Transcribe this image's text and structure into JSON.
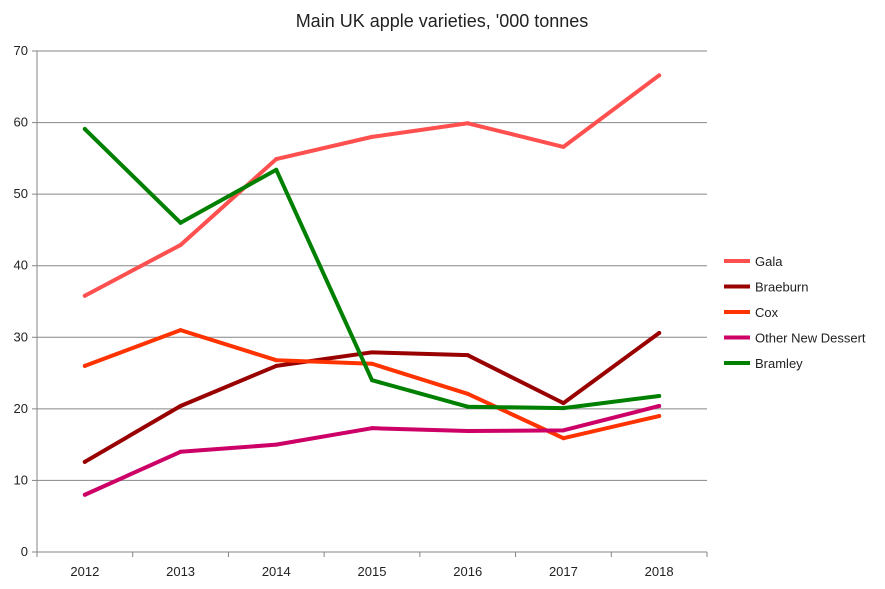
{
  "chart_data": {
    "type": "line",
    "title": "Main UK apple varieties, '000 tonnes",
    "xlabel": "",
    "ylabel": "",
    "categories": [
      "2012",
      "2013",
      "2014",
      "2015",
      "2016",
      "2017",
      "2018"
    ],
    "ylim": [
      0,
      70
    ],
    "yticks": [
      0,
      10,
      20,
      30,
      40,
      50,
      60,
      70
    ],
    "grid": true,
    "legend_position": "right",
    "series": [
      {
        "name": "Gala",
        "color": "#FF5050",
        "values": [
          35.8,
          42.9,
          54.9,
          58.0,
          59.9,
          56.6,
          66.6
        ]
      },
      {
        "name": "Braeburn",
        "color": "#990000",
        "values": [
          12.6,
          20.4,
          26.0,
          27.9,
          27.5,
          20.8,
          30.6
        ]
      },
      {
        "name": "Cox",
        "color": "#FF3300",
        "values": [
          26.0,
          31.0,
          26.8,
          26.3,
          22.1,
          15.9,
          19.0
        ]
      },
      {
        "name": "Other New Dessert",
        "color": "#CC0066",
        "values": [
          8.0,
          14.0,
          15.0,
          17.3,
          16.9,
          17.0,
          20.4
        ]
      },
      {
        "name": "Bramley",
        "color": "#008000",
        "values": [
          59.1,
          46.0,
          53.4,
          24.0,
          20.3,
          20.1,
          21.8
        ]
      }
    ]
  }
}
